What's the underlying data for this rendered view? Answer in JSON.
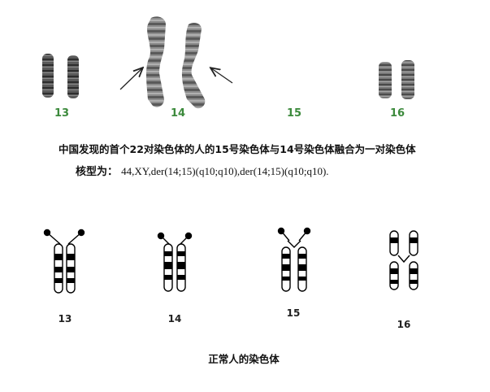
{
  "karyotype_photo": {
    "labels": [
      "13",
      "14",
      "15",
      "16"
    ],
    "label_color": "#3c8a3c"
  },
  "caption_main": "中国发现的首个22对染色体的人的15号染色体与14号染色体融合为一对染色体",
  "karyotype": {
    "label": "核型为：",
    "value": "44,XY,der(14;15)(q10;q10),der(14;15)(q10;q10)."
  },
  "ideogram": {
    "labels": [
      "13",
      "14",
      "15",
      "16"
    ]
  },
  "caption_normal": "正常人的染色体",
  "icons": {
    "arrow_left": "arrow-icon",
    "arrow_right": "arrow-icon"
  }
}
